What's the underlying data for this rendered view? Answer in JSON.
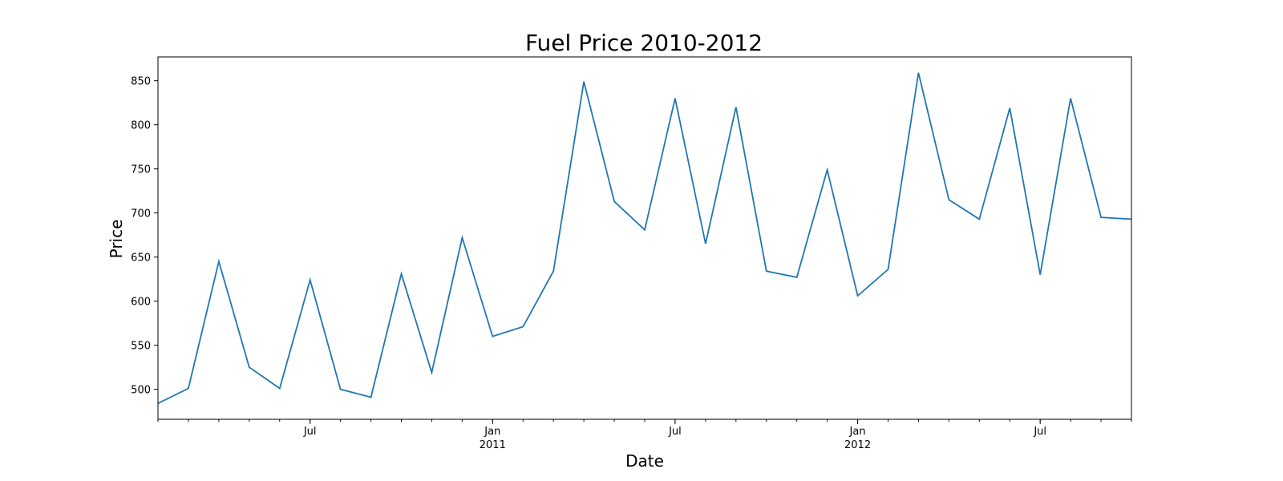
{
  "chart_data": {
    "type": "line",
    "title": "Fuel Price 2010-2012",
    "xlabel": "Date",
    "ylabel": "Price",
    "x": [
      "2010-02",
      "2010-03",
      "2010-04",
      "2010-05",
      "2010-06",
      "2010-07",
      "2010-08",
      "2010-09",
      "2010-10",
      "2010-11",
      "2010-12",
      "2011-01",
      "2011-02",
      "2011-03",
      "2011-04",
      "2011-05",
      "2011-06",
      "2011-07",
      "2011-08",
      "2011-09",
      "2011-10",
      "2011-11",
      "2011-12",
      "2012-01",
      "2012-02",
      "2012-03",
      "2012-04",
      "2012-05",
      "2012-06",
      "2012-07",
      "2012-08",
      "2012-09",
      "2012-10"
    ],
    "series": [
      {
        "values": [
          484,
          501,
          645,
          525,
          501,
          624,
          500,
          491,
          631,
          519,
          672,
          560,
          571,
          634,
          849,
          713,
          681,
          830,
          665,
          820,
          634,
          627,
          749,
          606,
          636,
          859,
          715,
          693,
          819,
          630,
          830,
          695,
          693
        ],
        "color": "#1f77b4"
      }
    ],
    "xlim": [
      "2010-02",
      "2012-10"
    ],
    "ylim": [
      466,
      877
    ],
    "yticks": [
      500,
      550,
      600,
      650,
      700,
      750,
      800,
      850
    ],
    "xticks_major": [
      {
        "x": "2010-07",
        "label": "Jul",
        "year": ""
      },
      {
        "x": "2011-01",
        "label": "Jan",
        "year": "2011"
      },
      {
        "x": "2011-07",
        "label": "Jul",
        "year": ""
      },
      {
        "x": "2012-01",
        "label": "Jan",
        "year": "2012"
      },
      {
        "x": "2012-07",
        "label": "Jul",
        "year": ""
      }
    ],
    "grid": false,
    "legend": false
  }
}
